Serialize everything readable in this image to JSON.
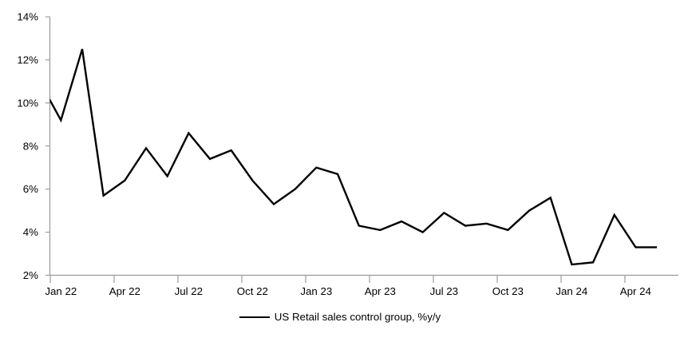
{
  "chart_data": {
    "type": "line",
    "title": "",
    "legend_label": "US Retail sales control group, %y/y",
    "legend_position": "bottom-center",
    "grid": "off",
    "background": "#ffffff",
    "series_color": "#000000",
    "axis_color": "#9b9b9b",
    "ylim": [
      2,
      14
    ],
    "ytick_step": 2,
    "ytick_labels": [
      "2%",
      "4%",
      "6%",
      "8%",
      "10%",
      "12%",
      "14%"
    ],
    "xtick_labels": [
      "Jan 22",
      "Apr 22",
      "Jul 22",
      "Oct 22",
      "Jan 23",
      "Apr 23",
      "Jul 23",
      "Oct 23",
      "Jan 24",
      "Apr 24"
    ],
    "first_point_partially_clipped_at_left_axis": true,
    "x": [
      "Dec 21",
      "Jan 22",
      "Feb 22",
      "Mar 22",
      "Apr 22",
      "May 22",
      "Jun 22",
      "Jul 22",
      "Aug 22",
      "Sep 22",
      "Oct 22",
      "Nov 22",
      "Dec 22",
      "Jan 23",
      "Feb 23",
      "Mar 23",
      "Apr 23",
      "May 23",
      "Jun 23",
      "Jul 23",
      "Aug 23",
      "Sep 23",
      "Oct 23",
      "Nov 23",
      "Dec 23",
      "Jan 24",
      "Feb 24",
      "Mar 24",
      "Apr 24",
      "May 24"
    ],
    "values": [
      11.0,
      9.2,
      12.5,
      5.7,
      6.4,
      7.9,
      6.6,
      8.6,
      7.4,
      7.8,
      6.4,
      5.3,
      6.0,
      7.0,
      6.7,
      4.3,
      4.1,
      4.5,
      4.0,
      4.9,
      4.3,
      4.4,
      4.1,
      5.0,
      5.6,
      2.5,
      2.6,
      4.8,
      3.3,
      3.3
    ]
  }
}
